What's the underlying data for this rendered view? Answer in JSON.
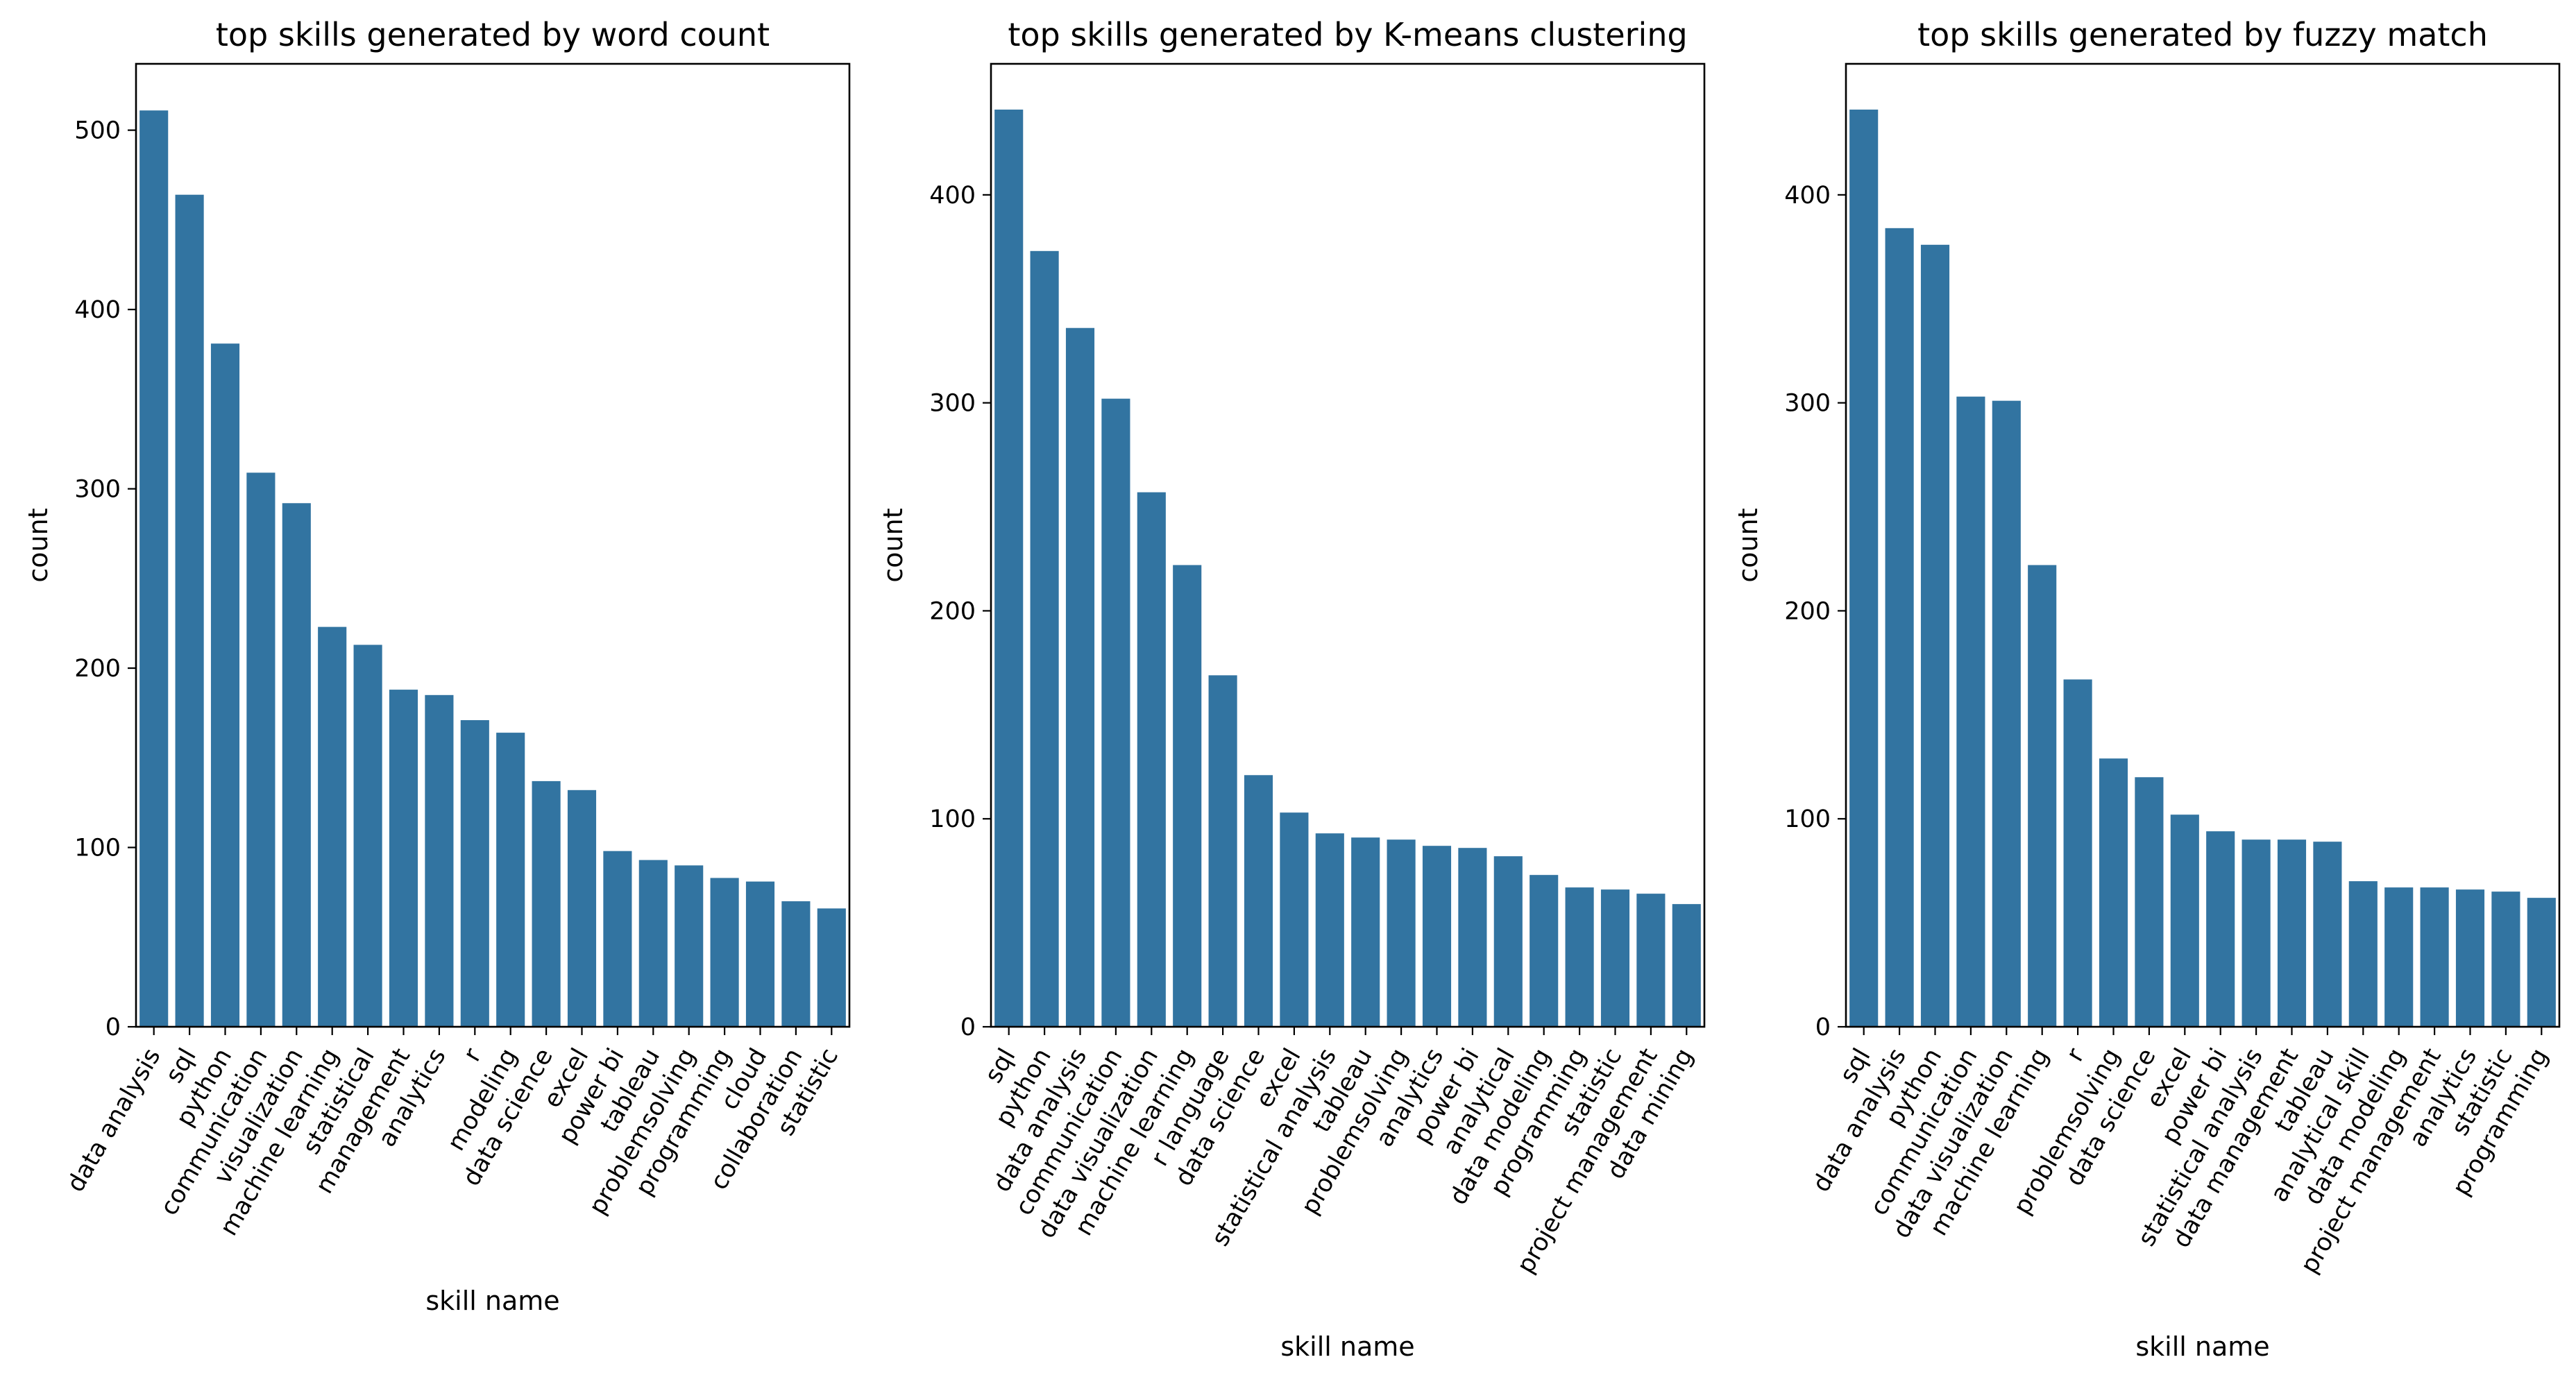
{
  "colors": {
    "bar": "#3274a1"
  },
  "chart_data": [
    {
      "type": "bar",
      "title": "top skills generated by word count",
      "xlabel": "skill name",
      "ylabel": "count",
      "ylim": [
        0,
        537
      ],
      "yticks": [
        0,
        100,
        200,
        300,
        400,
        500
      ],
      "categories": [
        "data analysis",
        "sql",
        "python",
        "communication",
        "visualization",
        "machine learning",
        "statistical",
        "management",
        "analytics",
        "r",
        "modeling",
        "data science",
        "excel",
        "power bi",
        "tableau",
        "problemsolving",
        "programming",
        "cloud",
        "collaboration",
        "statistic"
      ],
      "values": [
        511,
        464,
        381,
        309,
        292,
        223,
        213,
        188,
        185,
        171,
        164,
        137,
        132,
        98,
        93,
        90,
        83,
        81,
        70,
        66
      ]
    },
    {
      "type": "bar",
      "title": "top skills generated by K-means clustering",
      "xlabel": "skill name",
      "ylabel": "count",
      "ylim": [
        0,
        463
      ],
      "yticks": [
        0,
        100,
        200,
        300,
        400
      ],
      "categories": [
        "sql",
        "python",
        "data analysis",
        "communication",
        "data visualization",
        "machine learning",
        "r language",
        "data science",
        "excel",
        "statistical analysis",
        "tableau",
        "problemsolving",
        "analytics",
        "power bi",
        "analytical",
        "data modeling",
        "programming",
        "statistic",
        "project management",
        "data mining"
      ],
      "values": [
        441,
        373,
        336,
        302,
        257,
        222,
        169,
        121,
        103,
        93,
        91,
        90,
        87,
        86,
        82,
        73,
        67,
        66,
        64,
        59
      ]
    },
    {
      "type": "bar",
      "title": "top skills generated by fuzzy match",
      "xlabel": "skill name",
      "ylabel": "count",
      "ylim": [
        0,
        463
      ],
      "yticks": [
        0,
        100,
        200,
        300,
        400
      ],
      "categories": [
        "sql",
        "data analysis",
        "python",
        "communication",
        "data visualization",
        "machine learning",
        "r",
        "problemsolving",
        "data science",
        "excel",
        "power bi",
        "statistical analysis",
        "data management",
        "tableau",
        "analytical skill",
        "data modeling",
        "project management",
        "analytics",
        "statistic",
        "programming"
      ],
      "values": [
        441,
        384,
        376,
        303,
        301,
        222,
        167,
        129,
        120,
        102,
        94,
        90,
        90,
        89,
        70,
        67,
        67,
        66,
        65,
        62
      ]
    }
  ]
}
